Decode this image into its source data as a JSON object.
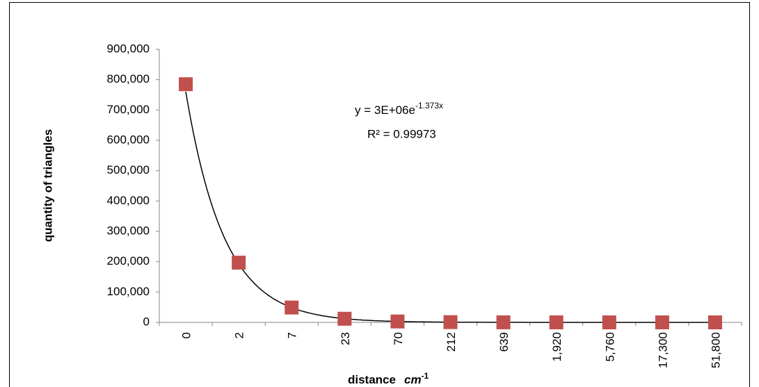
{
  "chart_data": {
    "type": "scatter",
    "y_label": "quantity of triangles",
    "x_label": {
      "text": "distance",
      "unit": "cm",
      "exponent": "-1"
    },
    "categories": [
      "0",
      "2",
      "7",
      "23",
      "70",
      "212",
      "639",
      "1,920",
      "5,760",
      "17,300",
      "51,800"
    ],
    "series": [
      {
        "color": "#c0504d",
        "values": [
          785000,
          197000,
          49000,
          12000,
          3000,
          800,
          200,
          50,
          10,
          3,
          1
        ]
      }
    ],
    "trendline": {
      "kind": "exponential",
      "a": 3000000,
      "b": -1.373,
      "color": "#000000",
      "equation": {
        "base": "y = 3E+06e",
        "exponent": "-1.373x"
      },
      "r_squared": 0.99973,
      "r_squared_label": "R² = 0.99973"
    },
    "ylim": [
      0,
      900000
    ],
    "yticks": [
      {
        "value": 0,
        "label": "0"
      },
      {
        "value": 100000,
        "label": "100,000"
      },
      {
        "value": 200000,
        "label": "200,000"
      },
      {
        "value": 300000,
        "label": "300,000"
      },
      {
        "value": 400000,
        "label": "400,000"
      },
      {
        "value": 500000,
        "label": "500,000"
      },
      {
        "value": 600000,
        "label": "600,000"
      },
      {
        "value": 700000,
        "label": "700,000"
      },
      {
        "value": 800000,
        "label": "800,000"
      },
      {
        "value": 900000,
        "label": "900,000"
      }
    ],
    "grid": false
  }
}
